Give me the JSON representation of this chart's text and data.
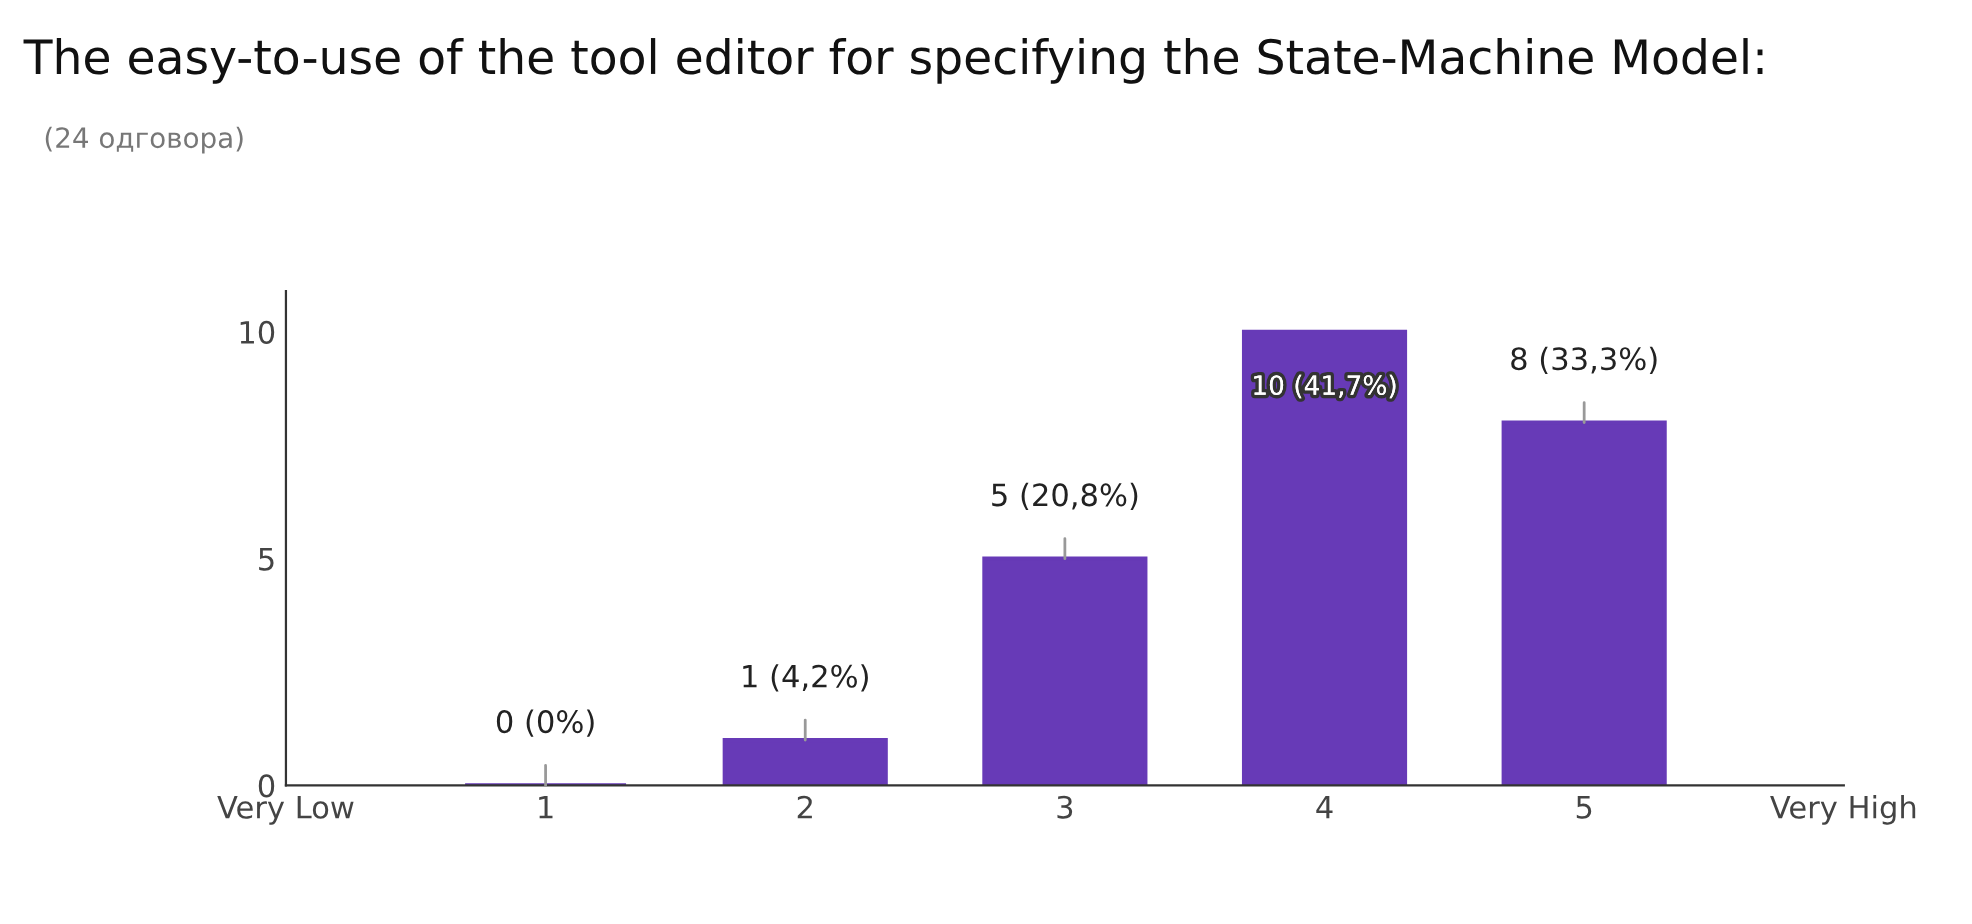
{
  "chart_data": {
    "type": "bar",
    "title": "The easy-to-use of the tool editor for specifying the State-Machine Model:",
    "subtitle": "(24 одговора)",
    "categories": [
      "Very Low",
      "1",
      "2",
      "3",
      "4",
      "5",
      "Very High"
    ],
    "values": [
      null,
      0,
      1,
      5,
      10,
      8,
      null
    ],
    "value_labels": [
      null,
      "0 (0%)",
      "1 (4,2%)",
      "5 (20,8%)",
      "10 (41,7%)",
      "8 (33,3%)",
      null
    ],
    "color": "#673ab7",
    "ylim": [
      0,
      10.9
    ],
    "yticks": [
      0,
      5,
      10
    ],
    "grid": false
  }
}
